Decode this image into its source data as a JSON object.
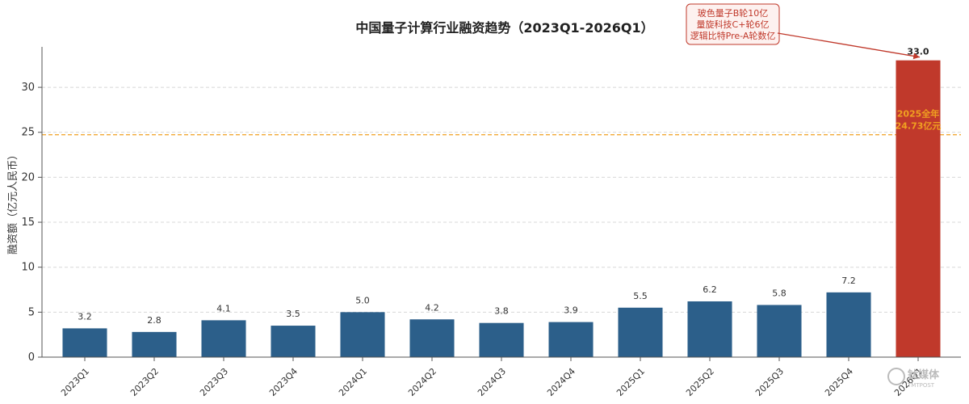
{
  "chart_data": {
    "type": "bar",
    "title": "中国量子计算行业融资趋势（2023Q1-2026Q1）",
    "ylabel": "融资额（亿元人民币）",
    "xlabel": "",
    "categories": [
      "2023Q1",
      "2023Q2",
      "2023Q3",
      "2023Q4",
      "2024Q1",
      "2024Q2",
      "2024Q3",
      "2024Q4",
      "2025Q1",
      "2025Q2",
      "2025Q3",
      "2025Q4",
      "2026Q1"
    ],
    "values": [
      3.2,
      2.8,
      4.1,
      3.5,
      5.0,
      4.2,
      3.8,
      3.9,
      5.5,
      6.2,
      5.8,
      7.2,
      33.0
    ],
    "value_labels": [
      "3.2",
      "2.8",
      "4.1",
      "3.5",
      "5.0",
      "4.2",
      "3.8",
      "3.9",
      "5.5",
      "6.2",
      "5.8",
      "7.2",
      "33.0"
    ],
    "ylim": [
      0,
      34.5
    ],
    "yticks": [
      0,
      5,
      10,
      15,
      20,
      25,
      30
    ],
    "grid": "horizontal-dashed",
    "legend": "none",
    "bar_color": "#2c5f8a",
    "highlight_color": "#c0392b",
    "highlight_index": 12,
    "reference_line": {
      "value": 24.73,
      "color": "#f0a020",
      "label_lines": [
        "2025全年",
        "24.73亿元"
      ]
    },
    "annotation": {
      "target_index": 12,
      "lines": [
        "玻色量子B轮10亿",
        "量旋科技C+轮6亿",
        "逻辑比特Pre-A轮数亿"
      ]
    }
  },
  "watermark": {
    "text": "钛媒体",
    "sub": "TMTPOST"
  }
}
